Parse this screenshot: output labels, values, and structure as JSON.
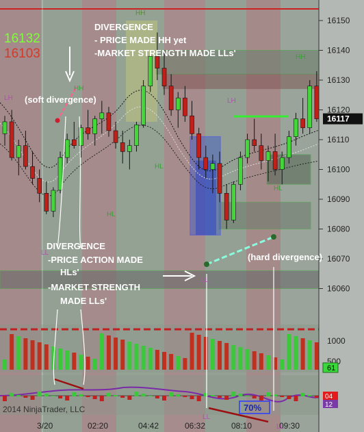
{
  "chart_data": {
    "type": "candlestick",
    "title": "",
    "watermark": "2014 NinjaTrader, LLC",
    "price_readouts": {
      "up": "16132",
      "down": "16103",
      "up_color": "#7dff3a",
      "down_color": "#d23a2a"
    },
    "last_price": "16117",
    "y_ticks": [
      "16150",
      "16140",
      "16130",
      "16120",
      "16110",
      "16100",
      "16090",
      "16080",
      "16070",
      "16060"
    ],
    "ylim": [
      16056,
      16158
    ],
    "x_ticks": [
      "3/20",
      "02:20",
      "04:42",
      "06:32",
      "08:10",
      "09:30"
    ],
    "volume_ticks": [
      "1000",
      "500"
    ],
    "volume_tag": "61",
    "oscillator_tags": [
      "04",
      "12"
    ],
    "oscillator_level": "70%",
    "swing_labels": [
      "HH",
      "HH",
      "LH",
      "LH",
      "HH",
      "HL",
      "HL",
      "HL",
      "LL",
      "LL",
      "LL",
      "LL"
    ],
    "annotations": {
      "divergence_top": [
        "DIVERGENCE",
        "- PRICE MADE HH yet",
        "-MARKET STRENGTH MADE LLs'"
      ],
      "soft": "(soft divergence)",
      "divergence_bottom": [
        "DIVERGENCE",
        "-PRICE ACTION MADE",
        "HLs'",
        "-MARKET STRENGTH",
        "MADE LLs'"
      ],
      "hard": "(hard divergence)"
    },
    "colors": {
      "bull": "#44d63a",
      "bear": "#c0201a",
      "background": "#8f9a8f",
      "volume_bull": "#3bc83a",
      "volume_bear": "#c0301f"
    }
  }
}
